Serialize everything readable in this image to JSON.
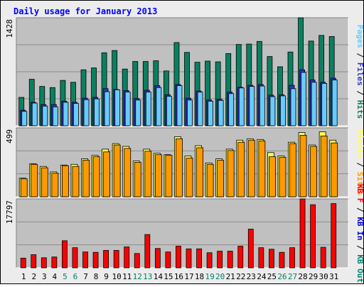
{
  "colors": {
    "background": "#ececec",
    "frame": "#000000",
    "panel_bg": "#c0c0c0",
    "grid": "#8c8c8c",
    "title": "#0000ff",
    "pages": "#66ccff",
    "files": "#3333cc",
    "hits": "#0b8060",
    "visits": "#ffff55",
    "sites": "#ff9900",
    "kb": "#ff0000",
    "weekday_label": "#000000",
    "weekend_label": "#00806a"
  },
  "chart_data": [
    {
      "type": "bar",
      "title": "Daily usage for January 2013",
      "max_label": "1428",
      "ylim": [
        0,
        1428
      ],
      "categories": [
        "1",
        "2",
        "3",
        "4",
        "5",
        "6",
        "7",
        "8",
        "9",
        "10",
        "11",
        "12",
        "13",
        "14",
        "15",
        "16",
        "17",
        "18",
        "19",
        "20",
        "21",
        "22",
        "23",
        "24",
        "25",
        "26",
        "27",
        "28",
        "29",
        "30",
        "31"
      ],
      "weekend_days": [
        "5",
        "6",
        "12",
        "13",
        "19",
        "20",
        "26",
        "27"
      ],
      "side_labels": [
        {
          "text": "Pages",
          "color": "#66ccff"
        },
        {
          "text": " / ",
          "color": "#000000"
        },
        {
          "text": "Files",
          "color": "#3333cc"
        },
        {
          "text": " / ",
          "color": "#000000"
        },
        {
          "text": "Hits",
          "color": "#0b8060"
        }
      ],
      "series": [
        {
          "name": "Hits",
          "color": "#0b8060",
          "values": [
            375,
            615,
            520,
            505,
            600,
            575,
            740,
            765,
            965,
            995,
            750,
            850,
            850,
            860,
            725,
            1100,
            970,
            840,
            855,
            845,
            955,
            1075,
            1080,
            1115,
            915,
            780,
            975,
            1428,
            1120,
            1195,
            1180
          ]
        },
        {
          "name": "Files",
          "color": "#3333cc",
          "values": [
            205,
            310,
            280,
            280,
            325,
            310,
            365,
            375,
            490,
            480,
            465,
            360,
            470,
            530,
            410,
            545,
            365,
            460,
            340,
            350,
            445,
            510,
            535,
            545,
            405,
            410,
            535,
            740,
            605,
            575,
            630
          ]
        },
        {
          "name": "Pages",
          "color": "#66ccff",
          "values": [
            190,
            300,
            260,
            250,
            310,
            295,
            345,
            355,
            450,
            475,
            445,
            340,
            445,
            505,
            390,
            530,
            340,
            445,
            325,
            335,
            425,
            500,
            520,
            525,
            385,
            395,
            490,
            705,
            575,
            560,
            605
          ]
        }
      ]
    },
    {
      "type": "bar",
      "max_label": "499",
      "ylim": [
        0,
        499
      ],
      "categories": [
        "1",
        "2",
        "3",
        "4",
        "5",
        "6",
        "7",
        "8",
        "9",
        "10",
        "11",
        "12",
        "13",
        "14",
        "15",
        "16",
        "17",
        "18",
        "19",
        "20",
        "21",
        "22",
        "23",
        "24",
        "25",
        "26",
        "27",
        "28",
        "29",
        "30",
        "31"
      ],
      "side_labels": [
        {
          "text": "Visits",
          "color": "#ffff55"
        },
        {
          "text": " / ",
          "color": "#000000"
        },
        {
          "text": "Sites",
          "color": "#ff9900"
        }
      ],
      "series": [
        {
          "name": "Visits",
          "color": "#ffff55",
          "values": [
            135,
            240,
            220,
            180,
            230,
            235,
            275,
            300,
            345,
            385,
            365,
            260,
            345,
            315,
            305,
            435,
            295,
            370,
            245,
            275,
            345,
            410,
            420,
            415,
            320,
            295,
            395,
            465,
            375,
            470,
            410
          ]
        },
        {
          "name": "Sites",
          "color": "#ff9900",
          "values": [
            130,
            235,
            210,
            170,
            225,
            220,
            265,
            290,
            325,
            375,
            350,
            250,
            330,
            305,
            300,
            420,
            280,
            355,
            235,
            265,
            335,
            395,
            410,
            405,
            290,
            285,
            385,
            445,
            365,
            440,
            390
          ]
        }
      ]
    },
    {
      "type": "bar",
      "max_label": "17797",
      "ylim": [
        0,
        17797
      ],
      "categories": [
        "1",
        "2",
        "3",
        "4",
        "5",
        "6",
        "7",
        "8",
        "9",
        "10",
        "11",
        "12",
        "13",
        "14",
        "15",
        "16",
        "17",
        "18",
        "19",
        "20",
        "21",
        "22",
        "23",
        "24",
        "25",
        "26",
        "27",
        "28",
        "29",
        "30",
        "31"
      ],
      "side_labels": [
        {
          "text": "KB F",
          "color": "#ff0000"
        },
        {
          "text": " / ",
          "color": "#000000"
        },
        {
          "text": "KB In",
          "color": "#0000cc"
        },
        {
          "text": " / ",
          "color": "#000000"
        },
        {
          "text": "KB Out",
          "color": "#00806a"
        }
      ],
      "series": [
        {
          "name": "KB F",
          "color": "#ff0000",
          "values": [
            2500,
            3400,
            2600,
            2800,
            7000,
            5200,
            4100,
            4000,
            4500,
            4500,
            5400,
            3700,
            8600,
            5000,
            4100,
            5600,
            4900,
            4900,
            3900,
            4300,
            4300,
            5600,
            10000,
            5200,
            4800,
            4000,
            5200,
            17797,
            16300,
            5300,
            16600
          ]
        }
      ]
    }
  ]
}
